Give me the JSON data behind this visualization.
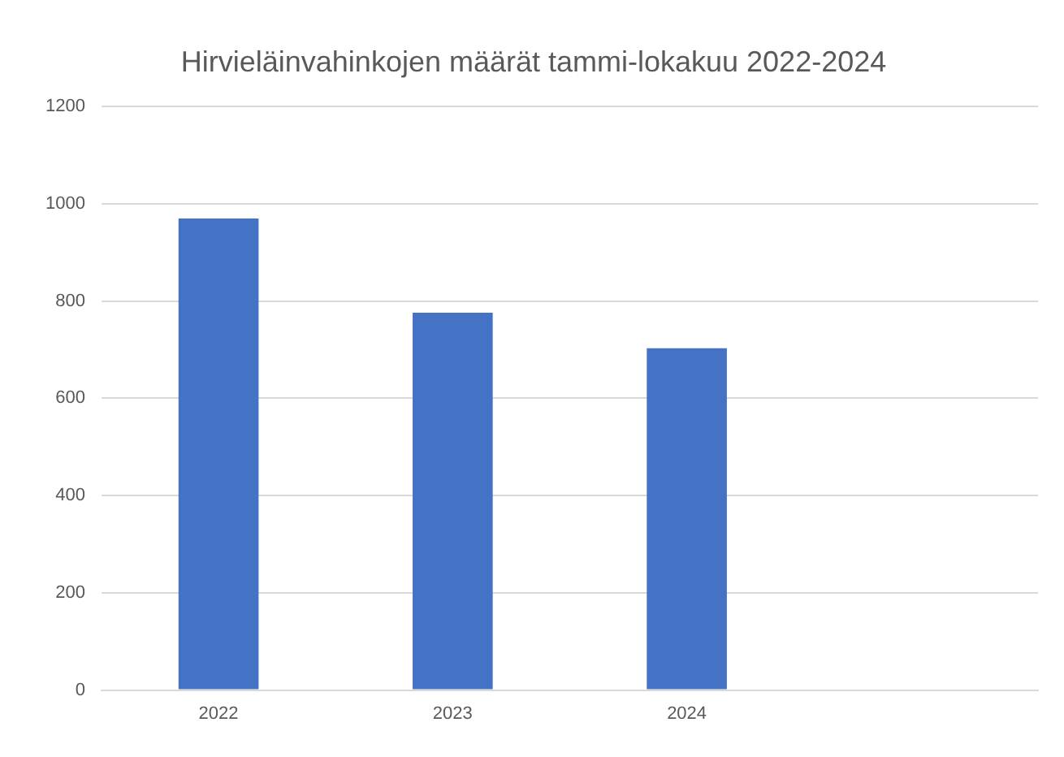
{
  "chart_data": {
    "type": "bar",
    "title": "Hirvieläinvahinkojen määrät tammi-lokakuu 2022-2024",
    "categories": [
      "2022",
      "2023",
      "2024",
      null
    ],
    "values": [
      970,
      776,
      703,
      null
    ],
    "color": "#4472c4",
    "ylim": [
      0,
      1200
    ],
    "yticks": [
      0,
      200,
      400,
      600,
      800,
      1000,
      1200
    ],
    "grid": "y",
    "legend": false
  }
}
